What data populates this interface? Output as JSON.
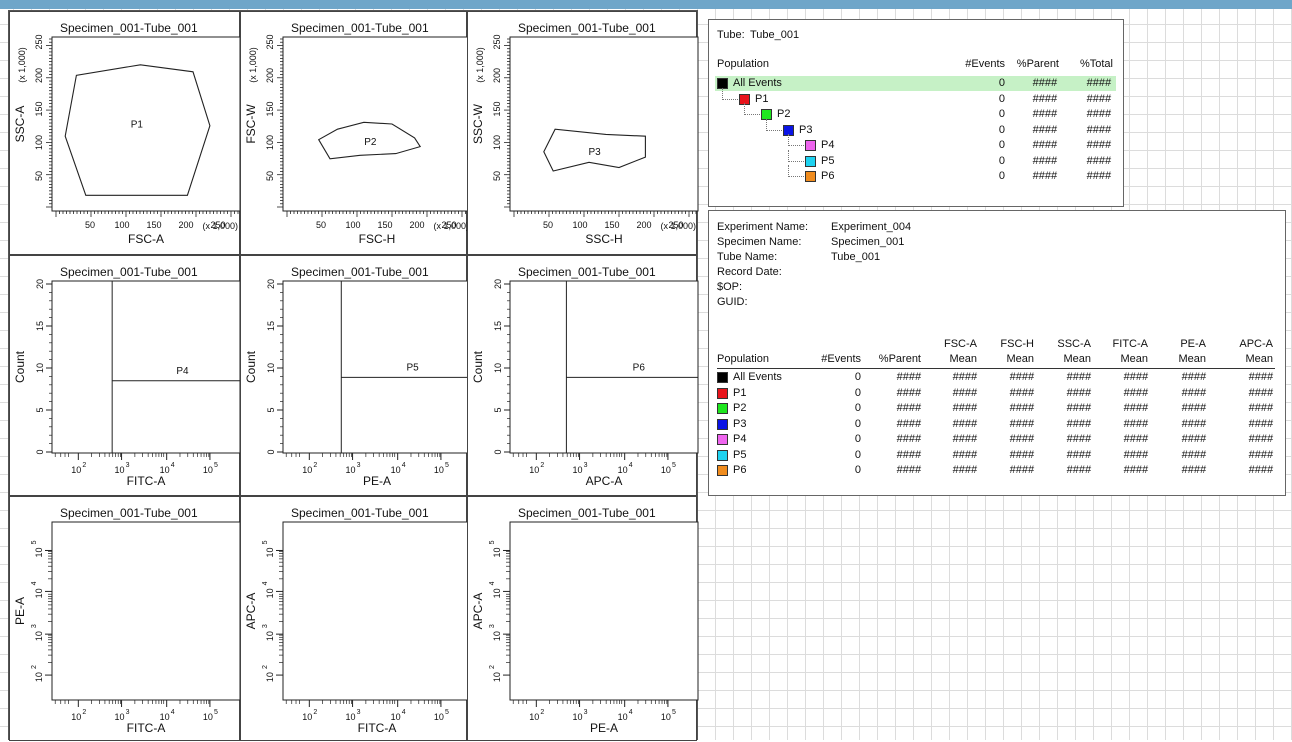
{
  "title": "Specimen_001-Tube_001",
  "plots": [
    {
      "id": "p11",
      "title": "Specimen_001-Tube_001",
      "xlabel": "FSC-A",
      "ylabel": "SSC-A",
      "type": "dot",
      "scale": "linear",
      "x_unit": "(x 1,000)",
      "y_unit": "(x 1,000)",
      "x_ticks": [
        "50",
        "100",
        "150",
        "200",
        "250"
      ],
      "y_ticks": [
        "50",
        "100",
        "150",
        "200",
        "250"
      ],
      "gate": "P1"
    },
    {
      "id": "p12",
      "title": "Specimen_001-Tube_001",
      "xlabel": "FSC-H",
      "ylabel": "FSC-W",
      "type": "dot",
      "scale": "linear",
      "x_unit": "(x 1,000)",
      "y_unit": "(x 1,000)",
      "x_ticks": [
        "50",
        "100",
        "150",
        "200",
        "250"
      ],
      "y_ticks": [
        "50",
        "100",
        "150",
        "200",
        "250"
      ],
      "gate": "P2"
    },
    {
      "id": "p13",
      "title": "Specimen_001-Tube_001",
      "xlabel": "SSC-H",
      "ylabel": "SSC-W",
      "type": "dot",
      "scale": "linear",
      "x_unit": "(x 1,000)",
      "y_unit": "(x 1,000)",
      "x_ticks": [
        "50",
        "100",
        "150",
        "200",
        "250"
      ],
      "y_ticks": [
        "50",
        "100",
        "150",
        "200",
        "250"
      ],
      "gate": "P3"
    },
    {
      "id": "p21",
      "title": "Specimen_001-Tube_001",
      "xlabel": "FITC-A",
      "ylabel": "Count",
      "type": "hist",
      "scale": "log",
      "y_ticks": [
        "0",
        "5",
        "10",
        "15",
        "20"
      ],
      "gate": "P4"
    },
    {
      "id": "p22",
      "title": "Specimen_001-Tube_001",
      "xlabel": "PE-A",
      "ylabel": "Count",
      "type": "hist",
      "scale": "log",
      "y_ticks": [
        "0",
        "5",
        "10",
        "15",
        "20"
      ],
      "gate": "P5"
    },
    {
      "id": "p23",
      "title": "Specimen_001-Tube_001",
      "xlabel": "APC-A",
      "ylabel": "Count",
      "type": "hist",
      "scale": "log",
      "y_ticks": [
        "0",
        "5",
        "10",
        "15",
        "20"
      ],
      "gate": "P6"
    },
    {
      "id": "p31",
      "title": "Specimen_001-Tube_001",
      "xlabel": "FITC-A",
      "ylabel": "PE-A",
      "type": "dot",
      "scale": "log",
      "gate": ""
    },
    {
      "id": "p32",
      "title": "Specimen_001-Tube_001",
      "xlabel": "FITC-A",
      "ylabel": "APC-A",
      "type": "dot",
      "scale": "log",
      "gate": ""
    },
    {
      "id": "p33",
      "title": "Specimen_001-Tube_001",
      "xlabel": "PE-A",
      "ylabel": "APC-A",
      "type": "dot",
      "scale": "log",
      "gate": ""
    }
  ],
  "log_ticks": [
    "10",
    "2",
    "10",
    "3",
    "10",
    "4",
    "10",
    "5"
  ],
  "hierarchy": {
    "tube_label": "Tube:",
    "tube_name": "Tube_001",
    "headers": {
      "population": "Population",
      "events": "#Events",
      "parent": "%Parent",
      "total": "%Total"
    },
    "rows": [
      {
        "name": "All Events",
        "color": "#000000",
        "events": "0",
        "parent": "####",
        "total": "####"
      },
      {
        "name": "P1",
        "color": "#e8141c",
        "events": "0",
        "parent": "####",
        "total": "####"
      },
      {
        "name": "P2",
        "color": "#1ee61e",
        "events": "0",
        "parent": "####",
        "total": "####"
      },
      {
        "name": "P3",
        "color": "#0a14e6",
        "events": "0",
        "parent": "####",
        "total": "####"
      },
      {
        "name": "P4",
        "color": "#ee64ee",
        "events": "0",
        "parent": "####",
        "total": "####"
      },
      {
        "name": "P5",
        "color": "#1ed2f0",
        "events": "0",
        "parent": "####",
        "total": "####"
      },
      {
        "name": "P6",
        "color": "#f08c1e",
        "events": "0",
        "parent": "####",
        "total": "####"
      }
    ]
  },
  "stats": {
    "fields": [
      {
        "label": "Experiment Name:",
        "value": "Experiment_004"
      },
      {
        "label": "Specimen Name:",
        "value": "Specimen_001"
      },
      {
        "label": "Tube Name:",
        "value": "Tube_001"
      },
      {
        "label": "Record Date:",
        "value": ""
      },
      {
        "label": "$OP:",
        "value": ""
      },
      {
        "label": "GUID:",
        "value": ""
      }
    ],
    "headers": {
      "population": "Population",
      "events": "#Events",
      "parent": "%Parent",
      "mean": "Mean"
    },
    "param_headers": [
      "FSC-A",
      "FSC-H",
      "SSC-A",
      "FITC-A",
      "PE-A",
      "APC-A"
    ],
    "rows": [
      {
        "name": "All Events",
        "color": "#000000",
        "events": "0",
        "parent": "####",
        "means": [
          "####",
          "####",
          "####",
          "####",
          "####",
          "####"
        ]
      },
      {
        "name": "P1",
        "color": "#e8141c",
        "events": "0",
        "parent": "####",
        "means": [
          "####",
          "####",
          "####",
          "####",
          "####",
          "####"
        ]
      },
      {
        "name": "P2",
        "color": "#1ee61e",
        "events": "0",
        "parent": "####",
        "means": [
          "####",
          "####",
          "####",
          "####",
          "####",
          "####"
        ]
      },
      {
        "name": "P3",
        "color": "#0a14e6",
        "events": "0",
        "parent": "####",
        "means": [
          "####",
          "####",
          "####",
          "####",
          "####",
          "####"
        ]
      },
      {
        "name": "P4",
        "color": "#ee64ee",
        "events": "0",
        "parent": "####",
        "means": [
          "####",
          "####",
          "####",
          "####",
          "####",
          "####"
        ]
      },
      {
        "name": "P5",
        "color": "#1ed2f0",
        "events": "0",
        "parent": "####",
        "means": [
          "####",
          "####",
          "####",
          "####",
          "####",
          "####"
        ]
      },
      {
        "name": "P6",
        "color": "#f08c1e",
        "events": "0",
        "parent": "####",
        "means": [
          "####",
          "####",
          "####",
          "####",
          "####",
          "####"
        ]
      }
    ]
  },
  "colors": {
    "titlebar": "#6fa6c9",
    "highlight": "#c6f1c6",
    "grid": "#dcdcdc"
  }
}
